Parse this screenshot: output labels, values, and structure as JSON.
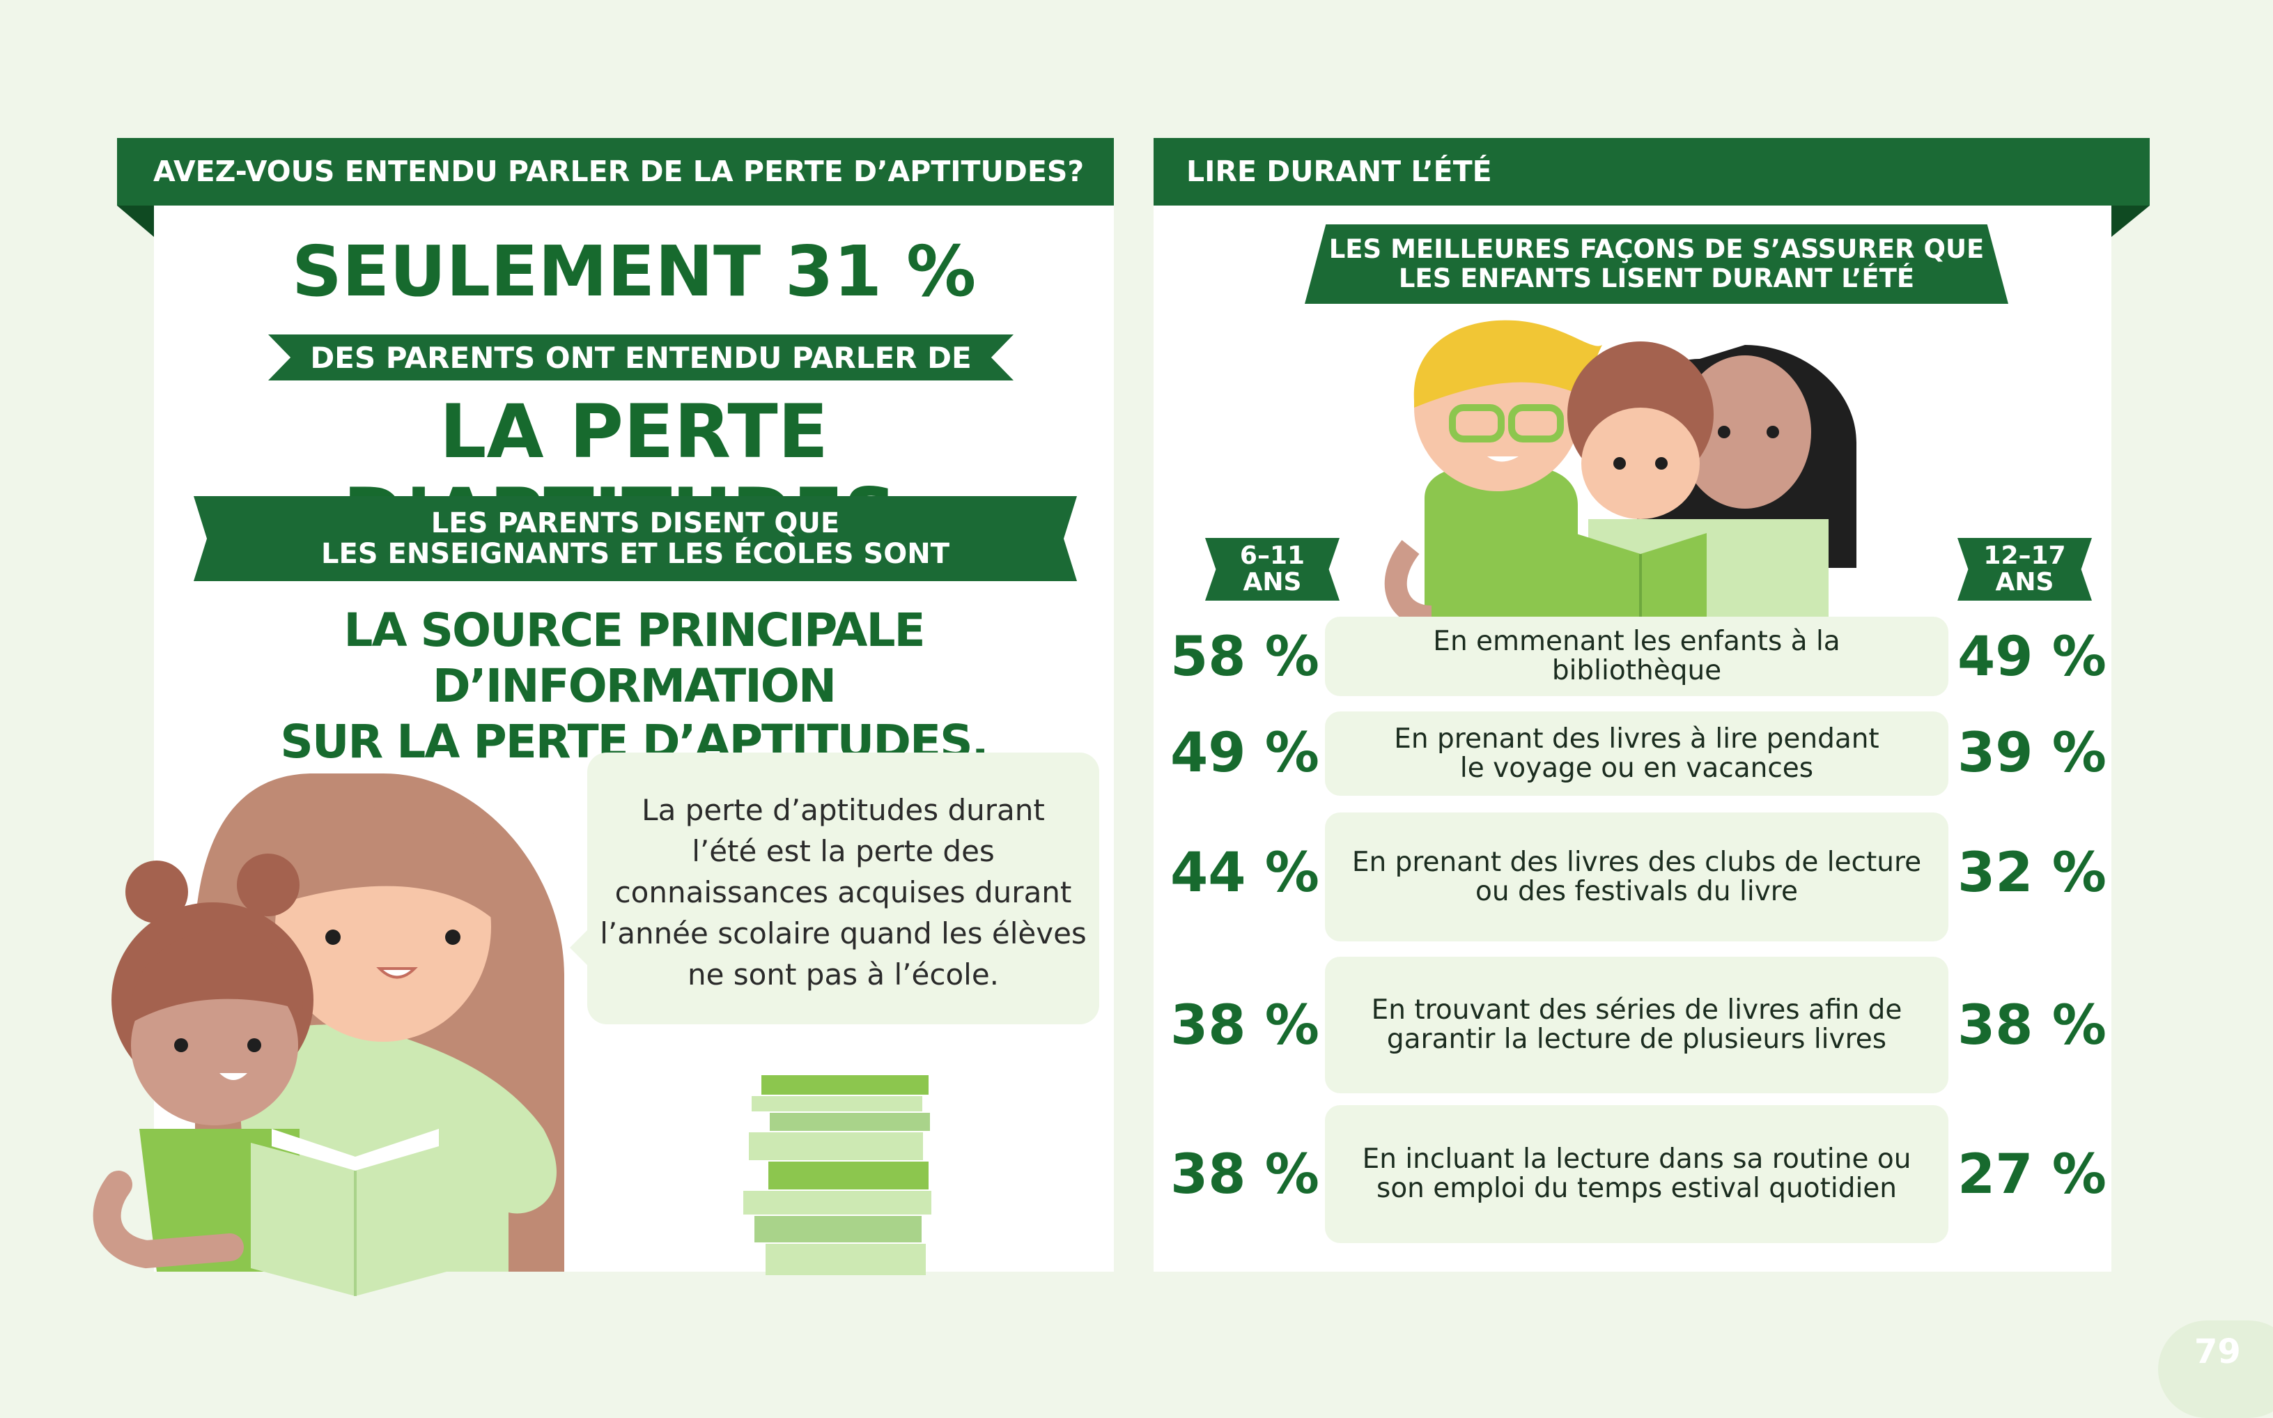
{
  "left": {
    "header": "AVEZ-VOUS ENTENDU PARLER DE LA PERTE D’APTITUDES?",
    "stat_line": "SEULEMENT 31 %",
    "ribbon_1": "DES PARENTS ONT ENTENDU PARLER DE",
    "big_line": "LA PERTE D’APTITUDES.",
    "ribbon_2_line1": "LES PARENTS DISENT QUE",
    "ribbon_2_line2": "LES ENSEIGNANTS ET LES ÉCOLES SONT",
    "source_line1": "LA SOURCE PRINCIPALE D’INFORMATION",
    "source_line2": "SUR LA PERTE D’APTITUDES.",
    "bubble_lines": [
      "La perte d’aptitudes durant",
      "l’été est la perte des",
      "connaissances acquises durant",
      "l’année scolaire quand les élèves",
      "ne sont pas à l’école."
    ]
  },
  "right": {
    "header": "LIRE DURANT L’ÉTÉ",
    "subheader_line1": "LES MEILLEURES FAÇONS DE S’ASSURER QUE",
    "subheader_line2": "LES ENFANTS LISENT DURANT L’ÉTÉ",
    "age_left_line1": "6–11",
    "age_left_line2": "ANS",
    "age_right_line1": "12–17",
    "age_right_line2": "ANS",
    "rows": [
      {
        "text_line1": "En emmenant les enfants à la bibliothèque",
        "text_line2": "",
        "pct_6_11": "58 %",
        "pct_12_17": "49 %"
      },
      {
        "text_line1": "En prenant des livres à lire pendant",
        "text_line2": "le voyage ou en vacances",
        "pct_6_11": "49 %",
        "pct_12_17": "39 %"
      },
      {
        "text_line1": "En prenant des livres des clubs de lecture",
        "text_line2": "ou des festivals du livre",
        "pct_6_11": "44 %",
        "pct_12_17": "32 %"
      },
      {
        "text_line1": "En trouvant des séries de livres afin de",
        "text_line2": "garantir la lecture de plusieurs livres",
        "pct_6_11": "38 %",
        "pct_12_17": "38 %"
      },
      {
        "text_line1": "En incluant la lecture dans sa routine ou",
        "text_line2": "son emploi du temps estival quotidien",
        "pct_6_11": "38 %",
        "pct_12_17": "27 %"
      }
    ]
  },
  "page_number": "79",
  "colors": {
    "dark_green": "#1b6a35",
    "text_green": "#176a2e",
    "light_green": "#eef6e6",
    "page_bg": "#f0f6ea"
  }
}
